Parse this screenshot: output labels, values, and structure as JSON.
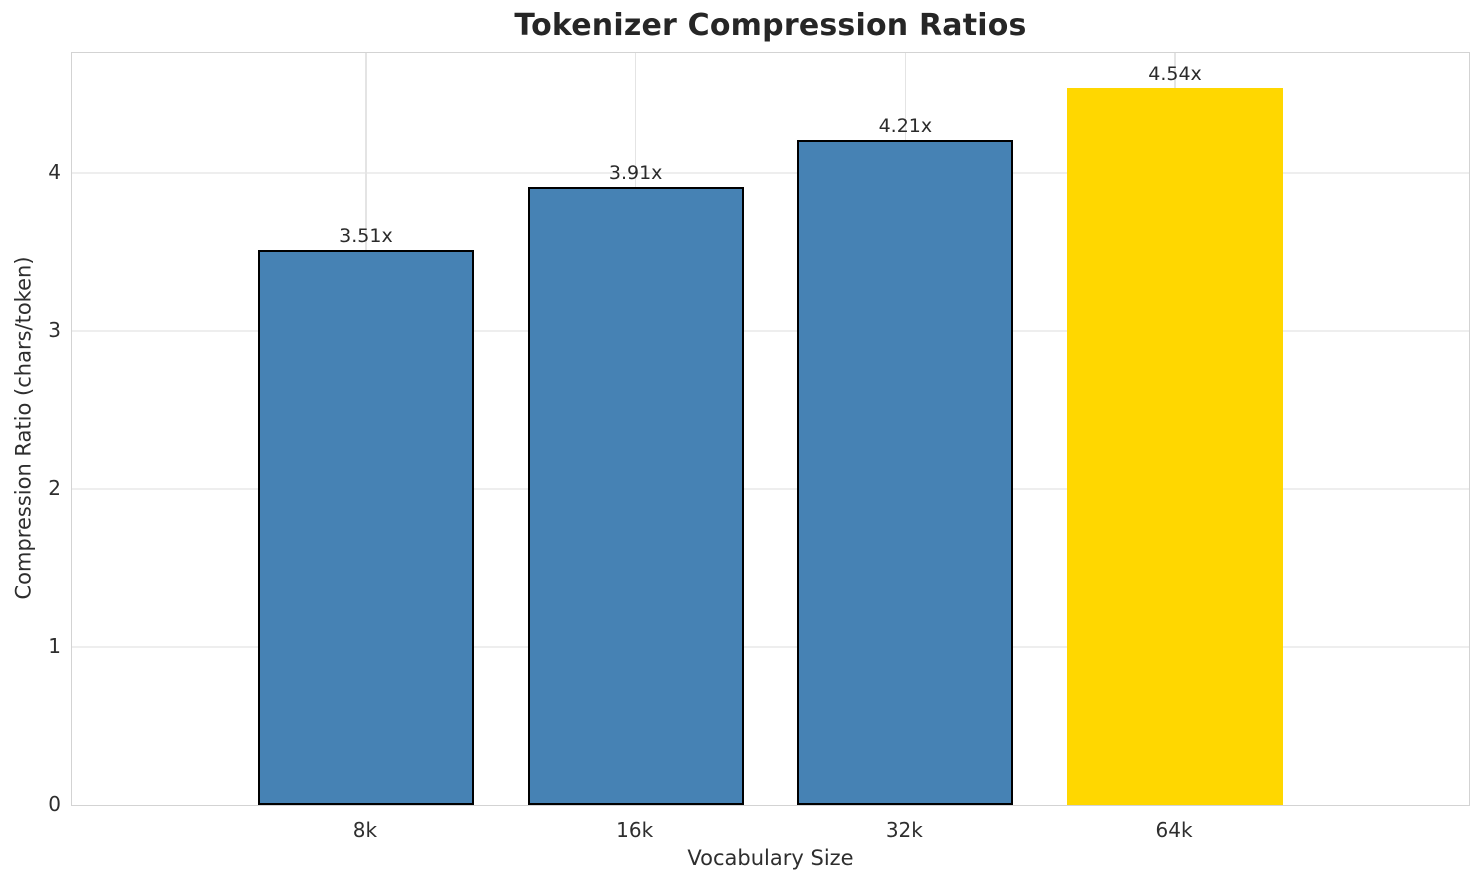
{
  "chart_data": {
    "type": "bar",
    "title": "Tokenizer Compression Ratios",
    "xlabel": "Vocabulary Size",
    "ylabel": "Compression Ratio (chars/token)",
    "categories": [
      "8k",
      "16k",
      "32k",
      "64k"
    ],
    "values": [
      3.51,
      3.91,
      4.21,
      4.54
    ],
    "bar_labels": [
      "3.51x",
      "3.91x",
      "4.21x",
      "4.54x"
    ],
    "bar_colors": [
      "#4682b4",
      "#4682b4",
      "#4682b4",
      "#ffd700"
    ],
    "bar_edge_colors": [
      "#000000",
      "#000000",
      "#000000",
      "none"
    ],
    "ylim": [
      0,
      4.76
    ],
    "yticks": [
      "0",
      "1",
      "2",
      "3",
      "4"
    ],
    "grid": "both",
    "legend": "none",
    "highlighted_category": "64k"
  },
  "colors": {
    "background": "#ffffff",
    "spine": "#d3d3d3",
    "grid_horizontal": "#eeeeee",
    "grid_vertical": "#e4e4e4",
    "bar_default": "#4682b4",
    "bar_highlight": "#ffd700",
    "bar_edge": "#000000",
    "text": "#2e2e2e",
    "title": "#262626"
  }
}
